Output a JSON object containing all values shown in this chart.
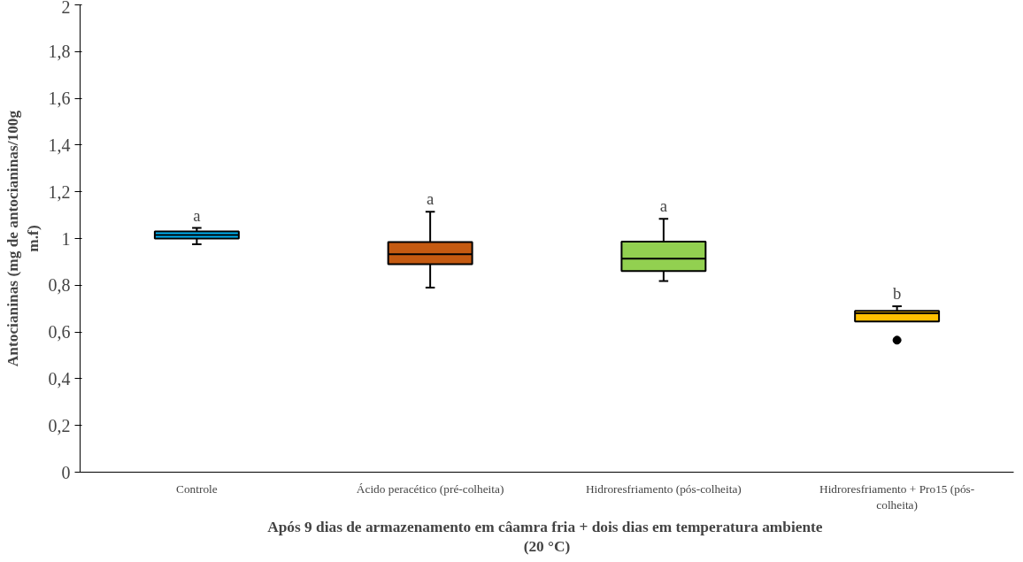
{
  "chart_data": {
    "type": "box",
    "xlabel": "Após  9 dias de armazenamento em câamra fria + dois dias em temperatura ambiente (20 °C)",
    "ylabel": "Antocianinas (mg de antocianinas/100g m.f)",
    "categories": [
      "Controle",
      "Ácido peracético (pré-colheita)",
      "Hidroresfriamento (pós-colheita)",
      "Hidroresfriamento + Pro15 (pós-colheita)"
    ],
    "colors": [
      "#00b0f0",
      "#c55a11",
      "#92d050",
      "#ffc000"
    ],
    "boxes": [
      {
        "low": 0.975,
        "q1": 1.0,
        "median": 1.015,
        "q3": 1.03,
        "high": 1.045
      },
      {
        "low": 0.79,
        "q1": 0.89,
        "median": 0.933,
        "q3": 0.985,
        "high": 1.115
      },
      {
        "low": 0.818,
        "q1": 0.861,
        "median": 0.914,
        "q3": 0.987,
        "high": 1.084
      },
      {
        "low": 0.645,
        "q1": 0.645,
        "median": 0.68,
        "q3": 0.69,
        "high": 0.71,
        "outliers": [
          0.565
        ]
      }
    ],
    "ylim": [
      0,
      2
    ],
    "yticks": [
      0,
      {
        "value": 0.2,
        "label": "0,2"
      },
      {
        "value": 0.4,
        "label": "0,4"
      },
      {
        "value": 0.6,
        "label": "0,6"
      },
      {
        "value": 0.8,
        "label": "0,8"
      },
      1,
      {
        "value": 1.2,
        "label": "1,2"
      },
      {
        "value": 1.4,
        "label": "1,4"
      },
      {
        "value": 1.6,
        "label": "1,6"
      },
      {
        "value": 1.8,
        "label": "1,8"
      },
      2
    ],
    "annotations": [
      "a",
      "a",
      "a",
      "b"
    ]
  }
}
